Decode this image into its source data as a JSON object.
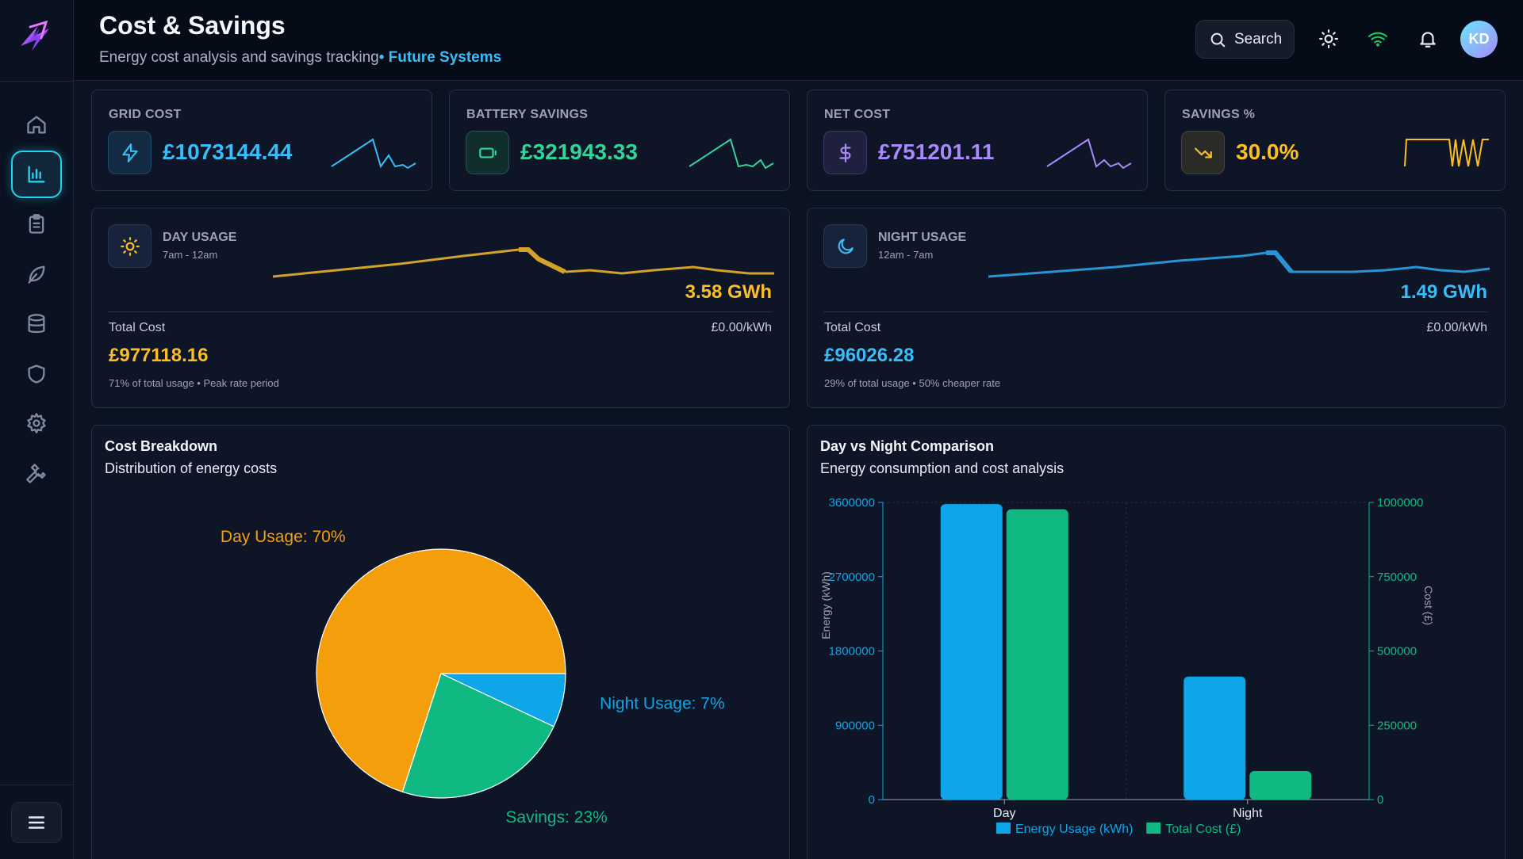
{
  "header": {
    "title": "Cost & Savings",
    "subtitle": "Energy cost analysis and savings tracking",
    "highlight": "• Future Systems",
    "search_label": "Search",
    "avatar_initials": "KD"
  },
  "sidebar": {
    "items": [
      {
        "name": "home",
        "active": false
      },
      {
        "name": "analytics",
        "active": true
      },
      {
        "name": "reports",
        "active": false
      },
      {
        "name": "sustainability",
        "active": false
      },
      {
        "name": "database",
        "active": false
      },
      {
        "name": "security",
        "active": false
      },
      {
        "name": "settings",
        "active": false
      },
      {
        "name": "tools",
        "active": false
      }
    ]
  },
  "stats": [
    {
      "label": "GRID COST",
      "value": "£1073144.44",
      "color": "#38bdf8",
      "icon": "lightning-icon"
    },
    {
      "label": "BATTERY SAVINGS",
      "value": "£321943.33",
      "color": "#34d399",
      "icon": "battery-icon"
    },
    {
      "label": "NET COST",
      "value": "£751201.11",
      "color": "#a78bfa",
      "icon": "dollar-icon"
    },
    {
      "label": "SAVINGS %",
      "value": "30.0%",
      "color": "#fbbf24",
      "icon": "trending-down-icon"
    }
  ],
  "day_usage": {
    "title": "DAY USAGE",
    "hours": "7am - 12am",
    "amount": "3.58 GWh",
    "total_cost_label": "Total Cost",
    "rate": "£0.00/kWh",
    "total_cost": "£977118.16",
    "note": "71% of total usage • Peak rate period",
    "color": "#fbbf24"
  },
  "night_usage": {
    "title": "NIGHT USAGE",
    "hours": "12am - 7am",
    "amount": "1.49 GWh",
    "total_cost_label": "Total Cost",
    "rate": "£0.00/kWh",
    "total_cost": "£96026.28",
    "note": "29% of total usage • 50% cheaper rate",
    "color": "#38bdf8"
  },
  "cost_breakdown": {
    "title": "Cost Breakdown",
    "subtitle": "Distribution of energy costs"
  },
  "comparison": {
    "title": "Day vs Night Comparison",
    "subtitle": "Energy consumption and cost analysis"
  },
  "chart_data": [
    {
      "type": "pie",
      "labels": [
        "Day Usage: 70%",
        "Night Usage: 7%",
        "Savings: 23%"
      ],
      "values": [
        70,
        7,
        23
      ],
      "colors": [
        "#f59e0b",
        "#0ea5e9",
        "#10b981"
      ]
    },
    {
      "type": "bar",
      "categories": [
        "Day",
        "Night"
      ],
      "series": [
        {
          "name": "Energy Usage (kWh)",
          "values": [
            3580000,
            1490000
          ],
          "axis": "left",
          "color": "#0ea5e9"
        },
        {
          "name": "Total Cost (£)",
          "values": [
            977118.16,
            96026.28
          ],
          "axis": "right",
          "color": "#10b981"
        }
      ],
      "ylabel": "Energy (kWh)",
      "y2label": "Cost (£)",
      "ylim": [
        0,
        3600000
      ],
      "y2lim": [
        0,
        1000000
      ],
      "yticks": [
        "0",
        "900000",
        "1800000",
        "2700000",
        "3600000"
      ],
      "y2ticks": [
        "0",
        "250000",
        "500000",
        "750000",
        "1000000"
      ],
      "legend": "bottom"
    }
  ]
}
